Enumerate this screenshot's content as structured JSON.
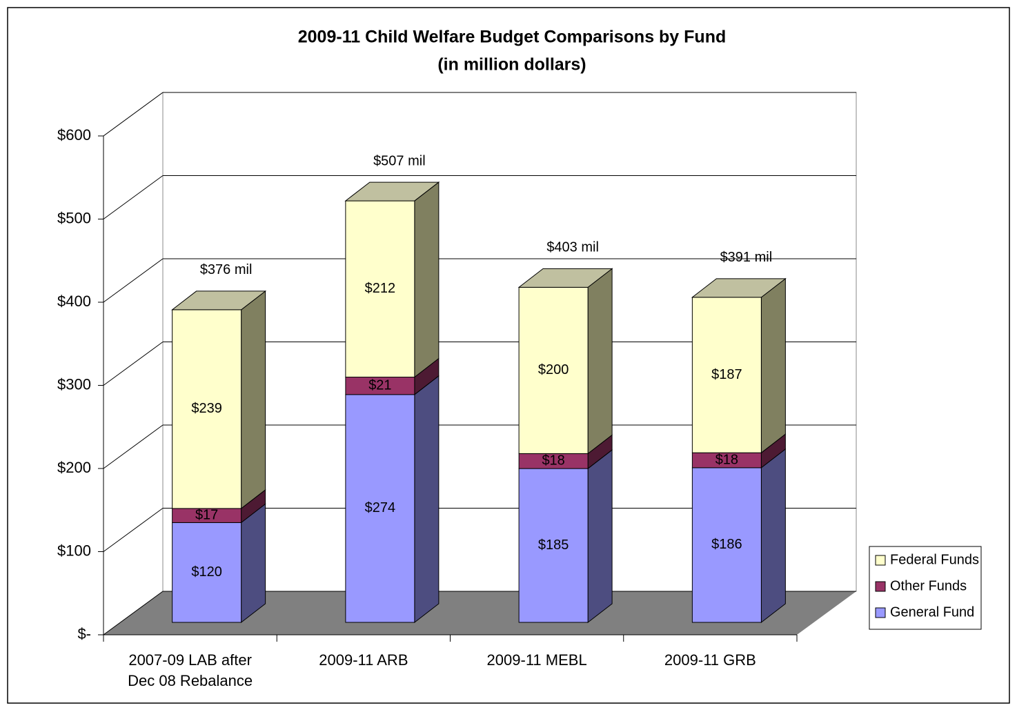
{
  "chart_data": {
    "type": "bar3d_stacked",
    "title": "2009-11 Child Welfare Budget Comparisons by Fund",
    "subtitle": "(in million dollars)",
    "categories": [
      "2007-09 LAB after Dec 08 Rebalance",
      "2009-11 ARB",
      "2009-11 MEBL",
      "2009-11 GRB"
    ],
    "series": [
      {
        "name": "General Fund",
        "color": "#9999ff",
        "side_color": "#4d4d80",
        "values": [
          120,
          274,
          185,
          186
        ],
        "value_labels": [
          "$120",
          "$274",
          "$185",
          "$186"
        ]
      },
      {
        "name": "Other Funds",
        "color": "#993366",
        "side_color": "#4d1a33",
        "values": [
          17,
          21,
          18,
          18
        ],
        "value_labels": [
          "$17",
          "$21",
          "$18",
          "$18"
        ]
      },
      {
        "name": "Federal Funds",
        "color": "#ffffcc",
        "side_color": "#808060",
        "top_color": "#c0c0a0",
        "values": [
          239,
          212,
          200,
          187
        ],
        "value_labels": [
          "$239",
          "$212",
          "$200",
          "$187"
        ]
      }
    ],
    "totals": [
      376,
      507,
      403,
      391
    ],
    "total_labels": [
      "$376 mil",
      "$507 mil",
      "$403 mil",
      "$391 mil"
    ],
    "ylim": [
      0,
      600
    ],
    "yticks": [
      {
        "value": 0,
        "label": "$-"
      },
      {
        "value": 100,
        "label": "$100"
      },
      {
        "value": 200,
        "label": "$200"
      },
      {
        "value": 300,
        "label": "$300"
      },
      {
        "value": 400,
        "label": "$400"
      },
      {
        "value": 500,
        "label": "$500"
      },
      {
        "value": 600,
        "label": "$600"
      }
    ],
    "grid": true,
    "legend": "right"
  }
}
